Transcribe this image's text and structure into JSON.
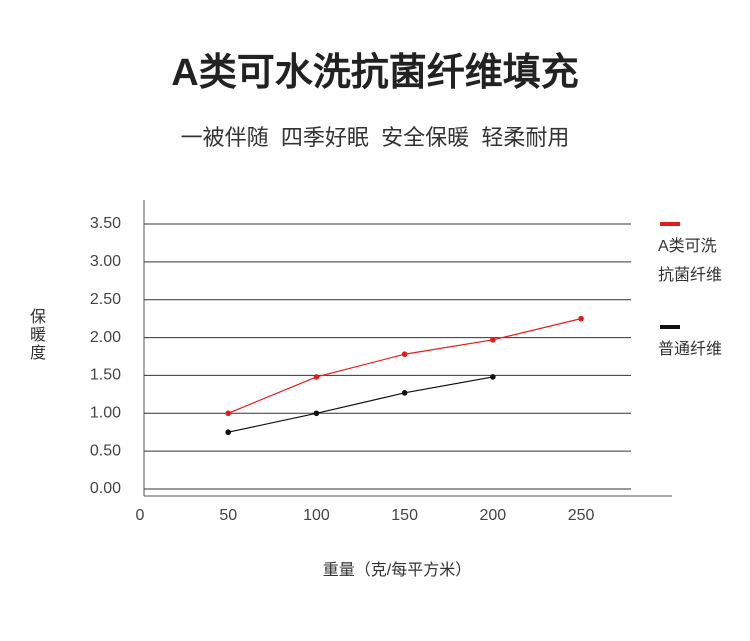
{
  "chart_data": {
    "type": "line",
    "title": "A类可水洗抗菌纤维填充",
    "subtitle": "一被伴随  四季好眠  安全保暖  轻柔耐用",
    "x_label": "重量（克/每平方米）",
    "y_label": "保暖度",
    "series": [
      {
        "name": "A类可洗抗菌纤维",
        "color": "#e31b1b",
        "x": [
          50,
          100,
          150,
          200,
          250
        ],
        "values": [
          1.0,
          1.48,
          1.78,
          1.97,
          2.25
        ]
      },
      {
        "name": "普通纤维",
        "color": "#111111",
        "x": [
          50,
          100,
          150,
          200
        ],
        "values": [
          0.75,
          1.0,
          1.27,
          1.48
        ]
      }
    ],
    "xlim": [
      0,
      280
    ],
    "xticks": [
      0,
      50,
      100,
      150,
      200,
      250
    ],
    "ylim": [
      0,
      3.5
    ],
    "yticks": [
      {
        "value": 0,
        "label": "0.00"
      },
      {
        "value": 0.5,
        "label": "0.50"
      },
      {
        "value": 1,
        "label": "1.00"
      },
      {
        "value": 1.5,
        "label": "1.50"
      },
      {
        "value": 2,
        "label": "2.00"
      },
      {
        "value": 2.5,
        "label": "2.50"
      },
      {
        "value": 3,
        "label": "3.00"
      },
      {
        "value": 3.5,
        "label": "3.50"
      }
    ],
    "grid": true
  }
}
